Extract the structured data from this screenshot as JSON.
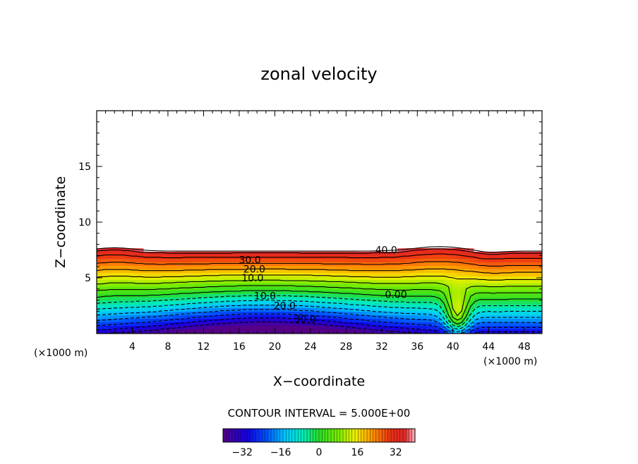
{
  "chart_data": {
    "type": "heatmap",
    "title": "zonal velocity",
    "xlabel": "X−coordinate",
    "ylabel": "Z−coordinate",
    "x_unit_left": "(×1000 m)",
    "x_unit_right": "(×1000 m)",
    "xlim": [
      0,
      50
    ],
    "ylim": [
      0,
      20
    ],
    "x_ticks": [
      4,
      8,
      12,
      16,
      20,
      24,
      28,
      32,
      36,
      40,
      44,
      48
    ],
    "y_ticks": [
      5,
      10,
      15
    ],
    "contour_interval_text": "CONTOUR INTERVAL = 5.000E+00",
    "contour_labels": [
      {
        "text": "40.0",
        "x": 32.5,
        "z": 7.5
      },
      {
        "text": "30.0",
        "x": 17.2,
        "z": 6.6
      },
      {
        "text": "20.0",
        "x": 17.7,
        "z": 5.8
      },
      {
        "text": "10.0",
        "x": 17.5,
        "z": 5.0
      },
      {
        "text": "0.00",
        "x": 33.6,
        "z": 3.5
      },
      {
        "text": "10.0",
        "x": 18.9,
        "z": 3.4
      },
      {
        "text": "20.0",
        "x": 21.1,
        "z": 2.5
      },
      {
        "text": "30.0",
        "x": 23.4,
        "z": 1.3
      }
    ],
    "colorbar": {
      "range": [
        -40,
        40
      ],
      "ticks": [
        -32,
        -16,
        0,
        16,
        32
      ],
      "tick_labels": [
        "−32",
        "−16",
        "0",
        "16",
        "32"
      ]
    },
    "colors": {
      "min": "#5a0a8c",
      "mid": "#22dd22",
      "max": "#e02020"
    }
  }
}
